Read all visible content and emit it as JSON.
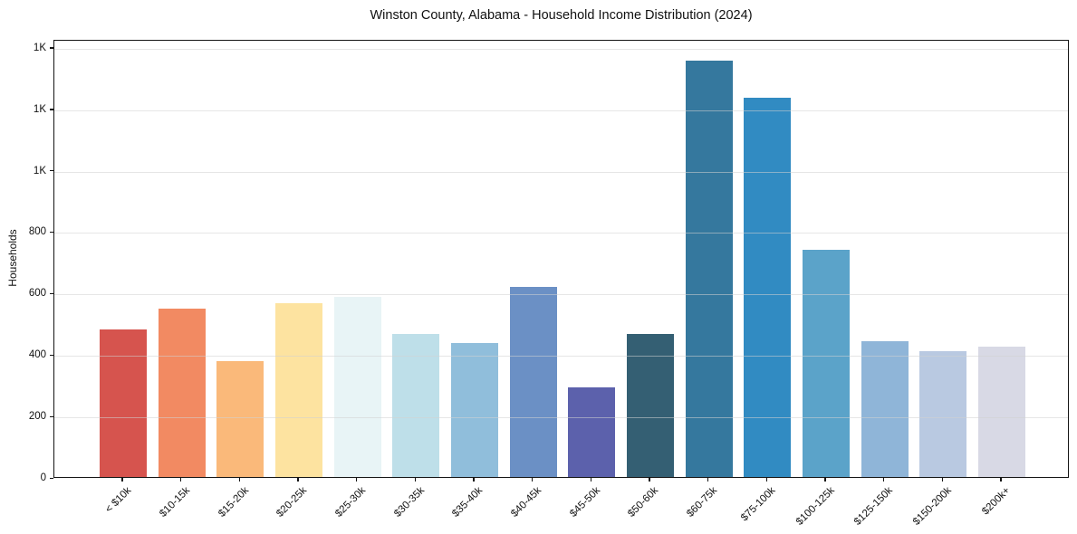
{
  "chart_data": {
    "type": "bar",
    "title": "Winston County, Alabama - Household Income Distribution (2024)",
    "xlabel": "",
    "ylabel": "Households",
    "categories": [
      "< $10k",
      "$10-15k",
      "$15-20k",
      "$20-25k",
      "$25-30k",
      "$30-35k",
      "$35-40k",
      "$40-45k",
      "$45-50k",
      "$50-60k",
      "$60-75k",
      "$75-100k",
      "$100-125k",
      "$125-150k",
      "$150-200k",
      "$200k+"
    ],
    "values": [
      480,
      548,
      376,
      565,
      585,
      465,
      435,
      618,
      291,
      465,
      1354,
      1236,
      741,
      441,
      411,
      424
    ],
    "bar_colors": [
      "#d6544e",
      "#f28a62",
      "#fab97a",
      "#fde3a0",
      "#e8f4f6",
      "#bedfe9",
      "#90bedb",
      "#6b90c5",
      "#5c61ac",
      "#345f73",
      "#35789e",
      "#318bc2",
      "#5ba3c9",
      "#8fb5d8",
      "#b9c9e1",
      "#d8d9e5"
    ],
    "ylim": [
      0,
      1426
    ],
    "yticks": [
      0,
      200,
      400,
      600,
      800,
      1000,
      1200,
      1400
    ],
    "ytick_labels": [
      "0",
      "200",
      "400",
      "600",
      "800",
      "1K",
      "1K",
      "1K"
    ],
    "grid": "horizontal-light",
    "legend": "none",
    "x_tick_rotation_deg": 45
  },
  "style": {
    "background": "#ffffff",
    "spine_color": "#141414",
    "grid_color": "#e3e3e3",
    "text_color": "#111111"
  }
}
